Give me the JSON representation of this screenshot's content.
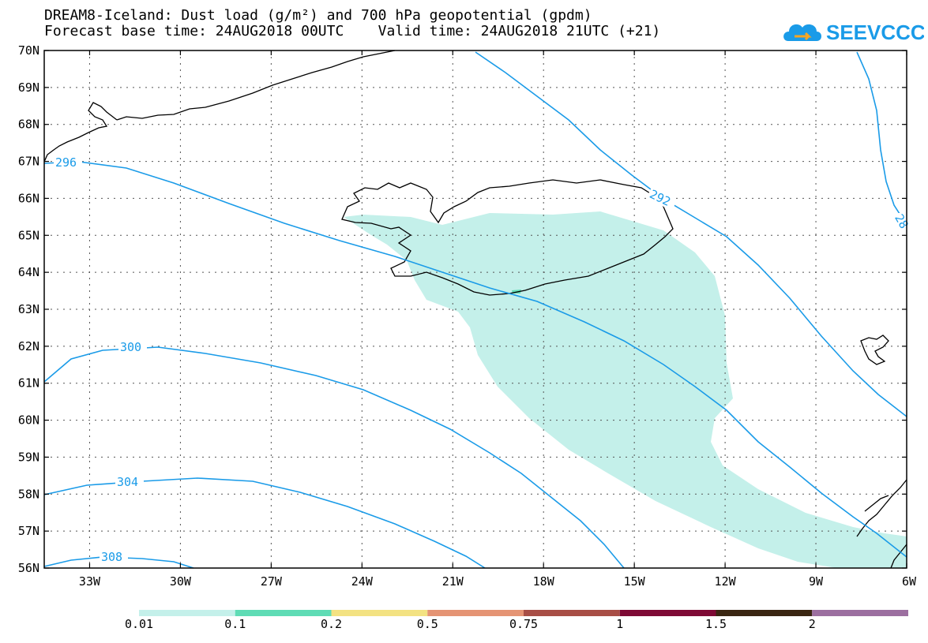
{
  "title": {
    "line1": "DREAM8-Iceland: Dust load (g/m²) and 700 hPa geopotential (gpdm)",
    "line2": "Forecast base time: 24AUG2018 00UTC    Valid time: 24AUG2018 21UTC (+21)"
  },
  "logo": {
    "text": "SEEVCCC",
    "icon": "cloud-icon",
    "color": "#1a9be8"
  },
  "axes": {
    "lat_labels": [
      "70N",
      "69N",
      "68N",
      "67N",
      "66N",
      "65N",
      "64N",
      "63N",
      "62N",
      "61N",
      "60N",
      "59N",
      "58N",
      "57N",
      "56N"
    ],
    "lon_labels": [
      "33W",
      "30W",
      "27W",
      "24W",
      "21W",
      "18W",
      "15W",
      "12W",
      "9W",
      "6W"
    ]
  },
  "contours": {
    "color": "#1a9be8",
    "labels": [
      "296",
      "292",
      "28",
      "300",
      "304",
      "308"
    ]
  },
  "colorbar": {
    "colors": [
      "#c4f0ea",
      "#5fdcb5",
      "#f3e282",
      "#e59474",
      "#a84e46",
      "#7e0a35",
      "#3a2612",
      "#9c6fa0"
    ],
    "labels": [
      "0.01",
      "0.1",
      "0.2",
      "0.5",
      "0.75",
      "1",
      "1.5",
      "2"
    ]
  },
  "dust_fill_color": "#c4f0ea"
}
